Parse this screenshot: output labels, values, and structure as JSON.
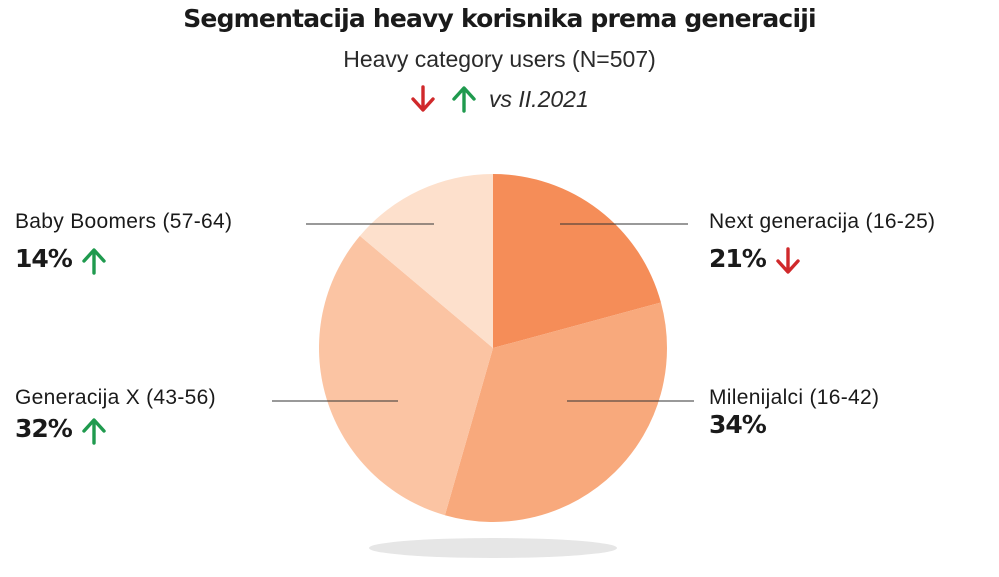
{
  "title": "Segmentacija heavy korisnika prema generaciji",
  "subtitle": "Heavy category users (N=507)",
  "legend": {
    "text": "vs II.2021",
    "down_icon": "arrow-down-icon",
    "up_icon": "arrow-up-icon",
    "down_color": "#d0292b",
    "up_color": "#1f9a4e"
  },
  "chart_data": {
    "type": "pie",
    "title": "Segmentacija heavy korisnika prema generaciji",
    "subtitle": "Heavy category users (N=507)",
    "unit": "%",
    "slices": [
      {
        "label": "Next generacija (16-25)",
        "value": 21,
        "value_label": "21%",
        "trend": "down",
        "color": "#f58d58"
      },
      {
        "label": "Milenijalci (16-42)",
        "value": 34,
        "value_label": "34%",
        "trend": "none",
        "color": "#f8a97c"
      },
      {
        "label": "Generacija X (43-56)",
        "value": 32,
        "value_label": "32%",
        "trend": "up",
        "color": "#fbc4a3"
      },
      {
        "label": "Baby Boomers (57-64)",
        "value": 14,
        "value_label": "14%",
        "trend": "up",
        "color": "#fde0cc"
      }
    ],
    "start_angle_deg": 0,
    "direction": "clockwise"
  }
}
